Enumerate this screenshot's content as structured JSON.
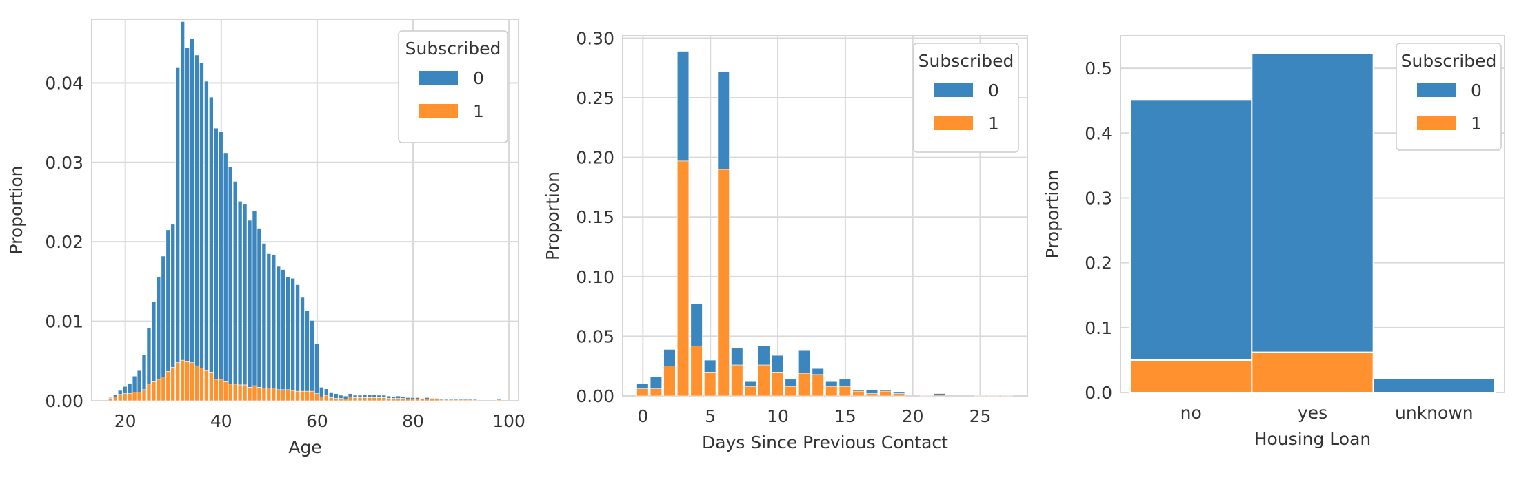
{
  "colors": {
    "series0": "#3b86be",
    "series1": "#ff922e",
    "grid": "#d9d9d9"
  },
  "chart_data": [
    {
      "type": "bar",
      "subtype": "stacked-histogram",
      "xlabel": "Age",
      "ylabel": "Proportion",
      "xlim": [
        13,
        102
      ],
      "ylim": [
        0,
        0.048
      ],
      "xticks": [
        20,
        40,
        60,
        80,
        100
      ],
      "yticks": [
        0.0,
        0.01,
        0.02,
        0.03,
        0.04
      ],
      "ytick_labels": [
        "0.00",
        "0.01",
        "0.02",
        "0.03",
        "0.04"
      ],
      "bin_width": 1,
      "legend": {
        "title": "Subscribed",
        "entries": [
          "0",
          "1"
        ],
        "position": "top-right"
      },
      "series": [
        {
          "name": "0",
          "x": [
            17,
            18,
            19,
            20,
            21,
            22,
            23,
            24,
            25,
            26,
            27,
            28,
            29,
            30,
            31,
            32,
            33,
            34,
            35,
            36,
            37,
            38,
            39,
            40,
            41,
            42,
            43,
            44,
            45,
            46,
            47,
            48,
            49,
            50,
            51,
            52,
            53,
            54,
            55,
            56,
            57,
            58,
            59,
            60,
            61,
            62,
            63,
            64,
            65,
            66,
            67,
            68,
            69,
            70,
            71,
            72,
            73,
            74,
            75,
            76,
            77,
            78,
            79,
            80,
            81,
            82,
            83,
            84,
            85,
            86,
            87,
            88,
            89,
            90,
            91,
            92,
            93,
            94,
            95,
            96,
            97,
            98
          ],
          "values": [
            0.0001,
            0.0003,
            0.0005,
            0.0009,
            0.0013,
            0.002,
            0.0027,
            0.0044,
            0.0071,
            0.0101,
            0.0129,
            0.0152,
            0.0178,
            0.018,
            0.0371,
            0.0426,
            0.0394,
            0.0408,
            0.0391,
            0.0384,
            0.0364,
            0.0346,
            0.0316,
            0.0312,
            0.0288,
            0.0273,
            0.0255,
            0.0231,
            0.0228,
            0.021,
            0.022,
            0.02,
            0.0182,
            0.0169,
            0.0168,
            0.0155,
            0.0151,
            0.0142,
            0.0141,
            0.0134,
            0.0118,
            0.0101,
            0.0089,
            0.0063,
            0.0012,
            0.0008,
            0.0006,
            0.0006,
            0.0004,
            0.0004,
            0.0004,
            0.0003,
            0.0003,
            0.0004,
            0.0004,
            0.0004,
            0.0003,
            0.0003,
            0.0003,
            0.0002,
            0.0003,
            0.0002,
            0.0002,
            0.0002,
            0.0002,
            0.0001,
            0.0002,
            0.0001,
            0.0001,
            0.0001,
            0.0001,
            0.0001,
            0.0001,
            0.0001,
            0.0001,
            0.0001,
            0.0001,
            0.0,
            0.0,
            0.0,
            0.0,
            0.0001
          ]
        },
        {
          "name": "1",
          "x": [
            17,
            18,
            19,
            20,
            21,
            22,
            23,
            24,
            25,
            26,
            27,
            28,
            29,
            30,
            31,
            32,
            33,
            34,
            35,
            36,
            37,
            38,
            39,
            40,
            41,
            42,
            43,
            44,
            45,
            46,
            47,
            48,
            49,
            50,
            51,
            52,
            53,
            54,
            55,
            56,
            57,
            58,
            59,
            60,
            61,
            62,
            63,
            64,
            65,
            66,
            67,
            68,
            69,
            70,
            71,
            72,
            73,
            74,
            75,
            76,
            77,
            78,
            79,
            80,
            81,
            82,
            83,
            84,
            85,
            86,
            87,
            88,
            89,
            90,
            91,
            92,
            93,
            94,
            95,
            96,
            97,
            98
          ],
          "values": [
            0.0003,
            0.0005,
            0.0008,
            0.0009,
            0.0009,
            0.0011,
            0.0011,
            0.0014,
            0.0021,
            0.0024,
            0.0027,
            0.003,
            0.0037,
            0.0042,
            0.0048,
            0.0051,
            0.005,
            0.0048,
            0.0044,
            0.0041,
            0.0038,
            0.0036,
            0.0027,
            0.0027,
            0.0024,
            0.0021,
            0.0021,
            0.002,
            0.002,
            0.0017,
            0.0019,
            0.0017,
            0.0016,
            0.0016,
            0.0016,
            0.0014,
            0.0014,
            0.0014,
            0.0013,
            0.0012,
            0.0012,
            0.0012,
            0.0012,
            0.0009,
            0.0005,
            0.0007,
            0.0004,
            0.0003,
            0.0003,
            0.0002,
            0.0005,
            0.0004,
            0.0004,
            0.0004,
            0.0004,
            0.0004,
            0.0004,
            0.0004,
            0.0003,
            0.0003,
            0.0003,
            0.0003,
            0.0002,
            0.0002,
            0.0002,
            0.0002,
            0.0002,
            0.0002,
            0.0002,
            0.0001,
            0.0001,
            0.0001,
            0.0001,
            0.0001,
            0.0001,
            0.0001,
            0.0001,
            0.0,
            0.0,
            0.0,
            0.0,
            0.0001
          ]
        }
      ]
    },
    {
      "type": "bar",
      "subtype": "stacked-histogram",
      "xlabel": "Days Since Previous Contact",
      "ylabel": "Proportion",
      "xlim": [
        -1.5,
        28.5
      ],
      "ylim": [
        0,
        0.302
      ],
      "xticks": [
        0,
        5,
        10,
        15,
        20,
        25
      ],
      "yticks": [
        0.0,
        0.05,
        0.1,
        0.15,
        0.2,
        0.25,
        0.3
      ],
      "ytick_labels": [
        "0.00",
        "0.05",
        "0.10",
        "0.15",
        "0.20",
        "0.25",
        "0.30"
      ],
      "bin_width": 0.9,
      "legend": {
        "title": "Subscribed",
        "entries": [
          "0",
          "1"
        ],
        "position": "top-right"
      },
      "series": [
        {
          "name": "0",
          "x": [
            0,
            1,
            2,
            3,
            4,
            5,
            6,
            7,
            8,
            9,
            10,
            11,
            12,
            13,
            14,
            15,
            16,
            17,
            18,
            19,
            21,
            22,
            25,
            26,
            27
          ],
          "values": [
            0.004,
            0.01,
            0.014,
            0.092,
            0.035,
            0.01,
            0.082,
            0.014,
            0.004,
            0.016,
            0.014,
            0.006,
            0.019,
            0.005,
            0.004,
            0.006,
            0.001,
            0.003,
            0.001,
            0.001,
            0.0005,
            0.001,
            0.0005,
            0.0005,
            0.0005
          ]
        },
        {
          "name": "1",
          "x": [
            0,
            1,
            2,
            3,
            4,
            5,
            6,
            7,
            8,
            9,
            10,
            11,
            12,
            13,
            14,
            15,
            16,
            17,
            18,
            19,
            21,
            22,
            25,
            26,
            27
          ],
          "values": [
            0.006,
            0.006,
            0.025,
            0.197,
            0.042,
            0.02,
            0.19,
            0.026,
            0.008,
            0.026,
            0.02,
            0.008,
            0.019,
            0.018,
            0.008,
            0.008,
            0.004,
            0.002,
            0.004,
            0.002,
            0.0005,
            0.001,
            0.0005,
            0.0005,
            0.0005
          ]
        }
      ]
    },
    {
      "type": "bar",
      "subtype": "stacked",
      "categories": [
        "no",
        "yes",
        "unknown"
      ],
      "xlabel": "Housing Loan",
      "ylabel": "Proportion",
      "ylim": [
        0,
        0.55
      ],
      "yticks": [
        0.0,
        0.1,
        0.2,
        0.3,
        0.4,
        0.5
      ],
      "ytick_labels": [
        "0.0",
        "0.1",
        "0.2",
        "0.3",
        "0.4",
        "0.5"
      ],
      "legend": {
        "title": "Subscribed",
        "entries": [
          "0",
          "1"
        ],
        "position": "top-right"
      },
      "series": [
        {
          "name": "0",
          "values": [
            0.402,
            0.461,
            0.022
          ]
        },
        {
          "name": "1",
          "values": [
            0.05,
            0.062,
            0.0
          ]
        }
      ]
    }
  ]
}
